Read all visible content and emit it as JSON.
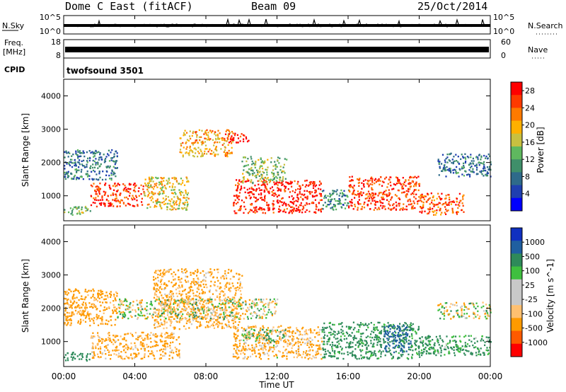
{
  "header": {
    "title": "Dome C East (fitACF)",
    "beam": "Beam 09",
    "date": "25/Oct/2014"
  },
  "nsky_panel": {
    "label": "N.Sky",
    "left_ticks": [
      "10^5",
      "10^0"
    ],
    "right_ticks": [
      "10^5",
      "10^0"
    ],
    "right_label": "N.Search"
  },
  "freq_panel": {
    "label_line1": "Freq.",
    "label_line2": "[MHz]",
    "left_ticks": [
      "18",
      "8"
    ],
    "right_ticks": [
      "60",
      "0"
    ],
    "right_label": "Nave"
  },
  "cpid_panel": {
    "label": "CPID",
    "text": "twofsound 3501"
  },
  "x_axis": {
    "label": "Time UT",
    "ticks": [
      "00:00",
      "04:00",
      "08:00",
      "12:00",
      "16:00",
      "20:00",
      "00:00"
    ]
  },
  "colors": {
    "power_bar": [
      "#0000ff",
      "#1f3fb0",
      "#2e6a8a",
      "#3f8f6a",
      "#5fb85f",
      "#c8c040",
      "#ffb000",
      "#ff7a00",
      "#ff3a00",
      "#ff0000"
    ],
    "velocity_bar": [
      "#ff0000",
      "#ff5a00",
      "#ff9a00",
      "#ffc070",
      "#c8c8c8",
      "#c8c8c8",
      "#3fbf3f",
      "#2e8a5a",
      "#1f5fa0",
      "#1030c0"
    ]
  },
  "chart_data": [
    {
      "type": "heatmap",
      "name": "power",
      "ylabel": "Slant Range [km]",
      "y_ticks": [
        1000,
        2000,
        3000,
        4000
      ],
      "ylim": [
        250,
        4500
      ],
      "xlim_hours": [
        0,
        24
      ],
      "colorbar": {
        "label": "Power [dB]",
        "ticks": [
          "4",
          "8",
          "12",
          "16",
          "20",
          "24",
          "28"
        ],
        "range": [
          0,
          30
        ]
      },
      "echo_regions": [
        {
          "t": [
            0.0,
            1.5
          ],
          "r": [
            450,
            700
          ],
          "db": 14
        },
        {
          "t": [
            0.0,
            3.0
          ],
          "r": [
            1500,
            2400
          ],
          "db": 8
        },
        {
          "t": [
            1.5,
            4.5
          ],
          "r": [
            700,
            1400
          ],
          "db": 26
        },
        {
          "t": [
            4.5,
            7.0
          ],
          "r": [
            600,
            1600
          ],
          "db": 18
        },
        {
          "t": [
            6.5,
            9.5
          ],
          "r": [
            2200,
            3000
          ],
          "db": 20
        },
        {
          "t": [
            9.0,
            10.5
          ],
          "r": [
            2600,
            2900
          ],
          "db": 28
        },
        {
          "t": [
            9.5,
            14.5
          ],
          "r": [
            500,
            1500
          ],
          "db": 28
        },
        {
          "t": [
            10.0,
            12.5
          ],
          "r": [
            1400,
            2200
          ],
          "db": 14
        },
        {
          "t": [
            14.5,
            16.0
          ],
          "r": [
            600,
            1200
          ],
          "db": 10
        },
        {
          "t": [
            16.0,
            20.0
          ],
          "r": [
            600,
            1600
          ],
          "db": 26
        },
        {
          "t": [
            20.0,
            22.5
          ],
          "r": [
            450,
            1100
          ],
          "db": 24
        },
        {
          "t": [
            21.0,
            24.0
          ],
          "r": [
            1600,
            2300
          ],
          "db": 8
        }
      ]
    },
    {
      "type": "heatmap",
      "name": "velocity",
      "ylabel": "Slant Range [km]",
      "y_ticks": [
        1000,
        2000,
        3000,
        4000
      ],
      "ylim": [
        250,
        4500
      ],
      "xlim_hours": [
        0,
        24
      ],
      "colorbar": {
        "label": "Velocity [m s^-1]",
        "ticks": [
          "1000",
          "500",
          "100",
          "25",
          "-25",
          "-100",
          "-500",
          "-1000"
        ]
      },
      "echo_regions": [
        {
          "t": [
            0.0,
            1.5
          ],
          "r": [
            450,
            700
          ],
          "v": 300
        },
        {
          "t": [
            0.0,
            3.0
          ],
          "r": [
            1500,
            2600
          ],
          "v": -200
        },
        {
          "t": [
            1.5,
            6.5
          ],
          "r": [
            500,
            1300
          ],
          "v": -150
        },
        {
          "t": [
            5.0,
            10.0
          ],
          "r": [
            1400,
            3200
          ],
          "v": -150
        },
        {
          "t": [
            3.0,
            12.0
          ],
          "r": [
            1700,
            2300
          ],
          "v": 0
        },
        {
          "t": [
            9.5,
            14.5
          ],
          "r": [
            500,
            1500
          ],
          "v": -120
        },
        {
          "t": [
            10.0,
            12.5
          ],
          "r": [
            1000,
            1400
          ],
          "v": 60
        },
        {
          "t": [
            14.5,
            20.0
          ],
          "r": [
            500,
            1600
          ],
          "v": 200
        },
        {
          "t": [
            18.0,
            19.5
          ],
          "r": [
            700,
            1500
          ],
          "v": 700
        },
        {
          "t": [
            20.0,
            24.0
          ],
          "r": [
            600,
            1200
          ],
          "v": 150
        },
        {
          "t": [
            21.0,
            24.0
          ],
          "r": [
            1700,
            2200
          ],
          "v": 0
        }
      ]
    }
  ]
}
